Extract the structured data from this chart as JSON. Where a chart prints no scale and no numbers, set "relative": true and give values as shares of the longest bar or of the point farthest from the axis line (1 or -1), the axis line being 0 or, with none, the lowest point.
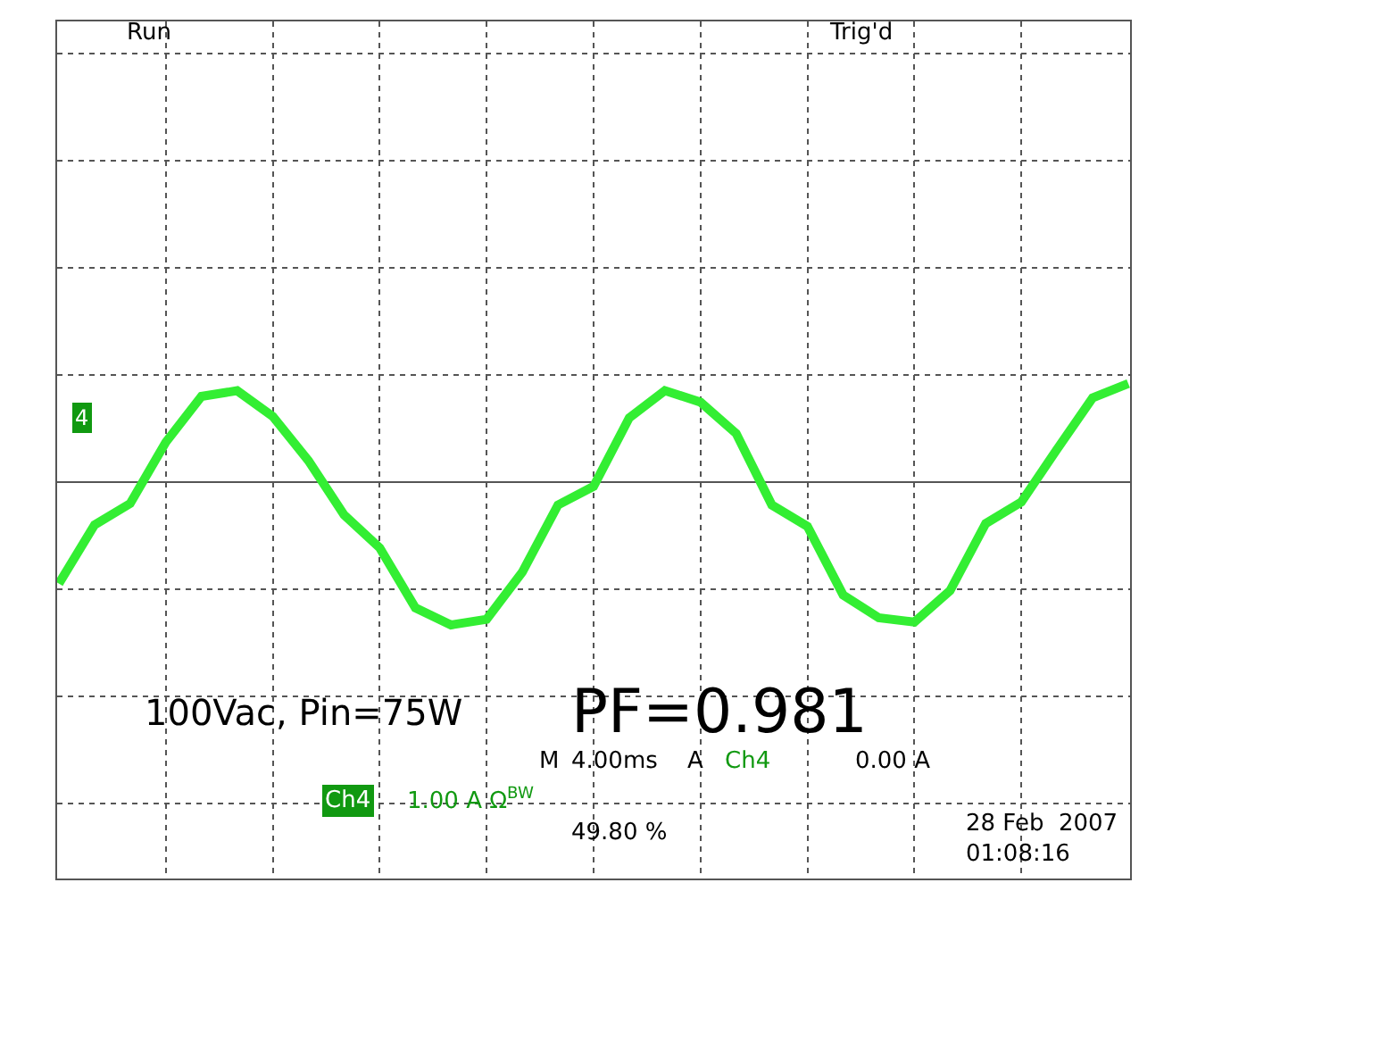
{
  "chart_data": {
    "type": "line",
    "relative": true,
    "grid": true,
    "color": "#33ee33",
    "categories": [
      null,
      null,
      null,
      null,
      null,
      null,
      null,
      null,
      null,
      null,
      null,
      null,
      null,
      null,
      null,
      null,
      null,
      null,
      null,
      null,
      null,
      null,
      null,
      null,
      null,
      null,
      null,
      null,
      null,
      null,
      null
    ],
    "values": [
      -0.71,
      -0.3,
      -0.15,
      0.28,
      0.6,
      0.64,
      0.46,
      0.15,
      -0.23,
      -0.46,
      -0.88,
      -1,
      -0.96,
      -0.63,
      -0.16,
      -0.03,
      0.45,
      0.64,
      0.56,
      0.34,
      -0.16,
      -0.31,
      -0.79,
      -0.95,
      -0.98,
      -0.76,
      -0.29,
      -0.14,
      0.23,
      0.59,
      0.69
    ],
    "annotations": [
      "Run",
      "Trig'd",
      "100Vac, Pin=75W",
      "PF=0.981",
      "M",
      "4.00ms",
      "A",
      "Ch4",
      "0.00 A",
      "Ch4",
      "1.00 A Ω$^{BW}$",
      "49.80 %",
      "28 Feb  2007",
      "01:08:16",
      "4"
    ]
  }
}
